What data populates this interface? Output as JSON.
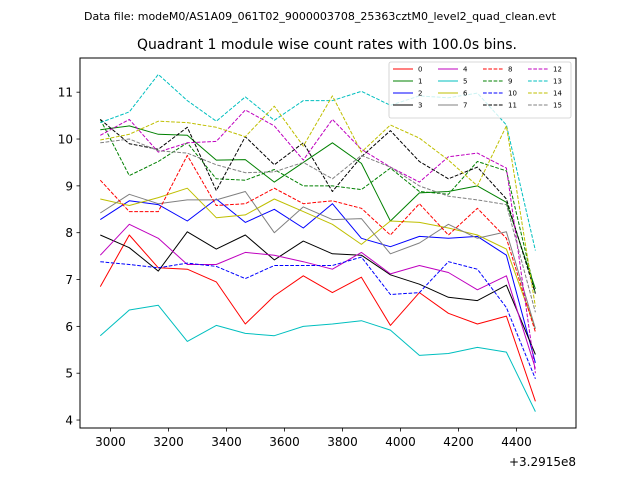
{
  "header": {
    "data_file": "Data file: modeM0/AS1A09_061T02_9000003708_25363cztM0_level2_quad_clean.evt"
  },
  "chart_data": {
    "type": "line",
    "title": "Quadrant 1 module wise count rates with 100.0s bins.",
    "xlabel": "",
    "ylabel": "",
    "x_offset_label": "+3.2915e8",
    "xlim": [
      2895,
      4605
    ],
    "ylim": [
      3.83,
      11.73
    ],
    "xticks": [
      3000,
      3200,
      3400,
      3600,
      3800,
      4000,
      4200,
      4400
    ],
    "yticks": [
      4,
      5,
      6,
      7,
      8,
      9,
      10,
      11
    ],
    "x": [
      2965,
      3065,
      3165,
      3265,
      3365,
      3465,
      3565,
      3665,
      3765,
      3865,
      3965,
      4065,
      4165,
      4265,
      4365,
      4465
    ],
    "legend_position": "upper-right",
    "series": [
      {
        "name": "0",
        "color": "#ff0000",
        "dash": "solid",
        "values": [
          6.85,
          7.95,
          7.25,
          7.22,
          6.95,
          6.05,
          6.65,
          7.08,
          6.72,
          7.05,
          6.02,
          6.72,
          6.28,
          6.05,
          6.22,
          4.4
        ]
      },
      {
        "name": "1",
        "color": "#008000",
        "dash": "solid",
        "values": [
          10.2,
          10.28,
          10.1,
          10.08,
          9.55,
          9.56,
          9.08,
          9.5,
          9.92,
          9.48,
          8.25,
          8.85,
          8.88,
          9.0,
          8.65,
          6.8
        ]
      },
      {
        "name": "2",
        "color": "#0000ff",
        "dash": "solid",
        "values": [
          8.28,
          8.68,
          8.6,
          8.25,
          8.72,
          8.22,
          8.5,
          8.1,
          8.62,
          7.88,
          7.7,
          7.92,
          7.88,
          7.92,
          7.52,
          5.22
        ]
      },
      {
        "name": "3",
        "color": "#000000",
        "dash": "solid",
        "values": [
          7.95,
          7.68,
          7.18,
          8.02,
          7.65,
          7.95,
          7.42,
          7.82,
          7.55,
          7.52,
          7.1,
          6.9,
          6.62,
          6.55,
          6.88,
          5.4
        ]
      },
      {
        "name": "4",
        "color": "#bf00bf",
        "dash": "solid",
        "values": [
          7.52,
          8.18,
          7.88,
          7.32,
          7.32,
          7.58,
          7.52,
          7.38,
          7.22,
          7.58,
          7.12,
          7.3,
          7.15,
          6.78,
          7.08,
          5.1
        ]
      },
      {
        "name": "5",
        "color": "#00bfbf",
        "dash": "solid",
        "values": [
          5.8,
          6.35,
          6.45,
          5.68,
          6.02,
          5.85,
          5.8,
          6.0,
          6.05,
          6.12,
          5.92,
          5.38,
          5.42,
          5.55,
          5.45,
          4.18
        ]
      },
      {
        "name": "6",
        "color": "#bfbf00",
        "dash": "solid",
        "values": [
          8.72,
          8.58,
          8.75,
          8.95,
          8.32,
          8.38,
          8.72,
          8.45,
          8.18,
          7.75,
          8.25,
          8.22,
          8.1,
          7.95,
          7.65,
          5.95
        ]
      },
      {
        "name": "7",
        "color": "#808080",
        "dash": "solid",
        "values": [
          8.42,
          8.82,
          8.62,
          8.7,
          8.7,
          8.88,
          8.0,
          8.55,
          8.28,
          8.3,
          7.55,
          7.78,
          8.18,
          7.88,
          8.02,
          5.95
        ]
      },
      {
        "name": "8",
        "color": "#ff0000",
        "dash": "dashed",
        "values": [
          9.12,
          8.45,
          8.45,
          9.65,
          8.58,
          8.62,
          8.95,
          8.62,
          8.68,
          8.52,
          7.95,
          8.62,
          7.95,
          8.52,
          7.88,
          5.88
        ]
      },
      {
        "name": "9",
        "color": "#008000",
        "dash": "dashed",
        "values": [
          10.42,
          9.22,
          9.52,
          9.92,
          9.15,
          9.12,
          9.35,
          9.0,
          9.0,
          8.92,
          9.38,
          8.88,
          8.82,
          9.52,
          9.32,
          6.7
        ]
      },
      {
        "name": "10",
        "color": "#0000ff",
        "dash": "dashed",
        "values": [
          7.38,
          7.32,
          7.25,
          7.35,
          7.28,
          7.02,
          7.3,
          7.3,
          7.3,
          7.48,
          6.68,
          6.72,
          7.38,
          7.22,
          6.4,
          4.88
        ]
      },
      {
        "name": "11",
        "color": "#000000",
        "dash": "dashed",
        "values": [
          10.42,
          9.9,
          9.78,
          10.25,
          8.9,
          10.05,
          9.45,
          9.92,
          8.88,
          9.62,
          10.18,
          9.52,
          9.15,
          9.4,
          8.72,
          6.7
        ]
      },
      {
        "name": "12",
        "color": "#bf00bf",
        "dash": "dashed",
        "values": [
          10.08,
          10.42,
          9.72,
          9.92,
          9.95,
          10.62,
          10.28,
          9.55,
          10.42,
          9.78,
          9.4,
          9.08,
          9.62,
          9.7,
          9.38,
          5.0
        ]
      },
      {
        "name": "13",
        "color": "#00bfbf",
        "dash": "dashed",
        "values": [
          10.35,
          10.58,
          11.38,
          10.82,
          10.38,
          10.9,
          10.4,
          10.82,
          10.82,
          11.02,
          10.72,
          10.92,
          10.88,
          10.98,
          10.3,
          7.62
        ]
      },
      {
        "name": "14",
        "color": "#bfbf00",
        "dash": "dashed",
        "values": [
          9.98,
          10.1,
          10.38,
          10.35,
          10.25,
          10.05,
          10.7,
          9.85,
          10.92,
          9.72,
          10.3,
          10.02,
          9.55,
          9.0,
          10.28,
          6.42
        ]
      },
      {
        "name": "15",
        "color": "#808080",
        "dash": "dashed",
        "values": [
          9.92,
          10.0,
          9.75,
          9.7,
          9.45,
          9.28,
          9.3,
          9.5,
          9.15,
          9.65,
          9.4,
          9.0,
          8.78,
          8.7,
          8.6,
          6.3
        ]
      }
    ]
  }
}
